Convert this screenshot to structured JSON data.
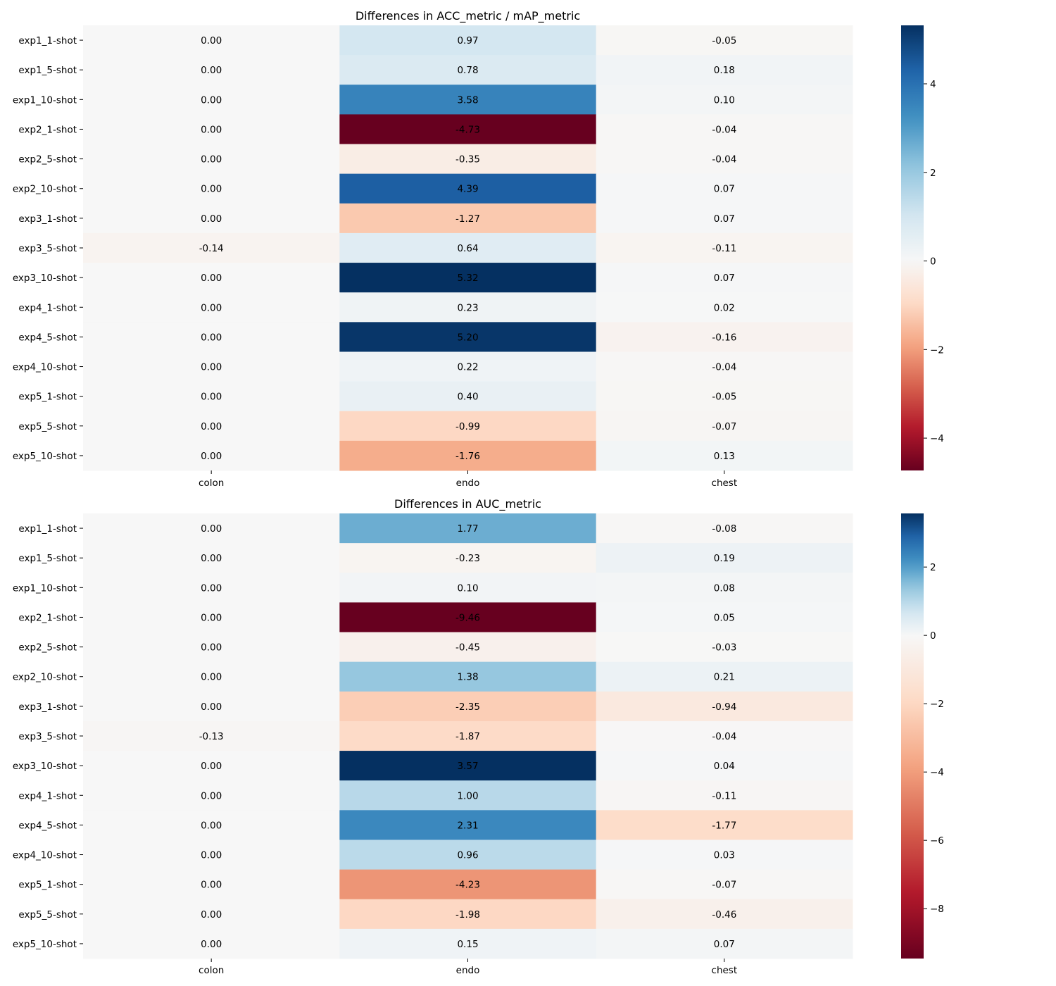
{
  "chart_data": [
    {
      "type": "heatmap",
      "title": "Differences in ACC_metric / mAP_metric",
      "colormap": "RdBu",
      "x_categories": [
        "colon",
        "endo",
        "chest"
      ],
      "y_categories": [
        "exp1_1-shot",
        "exp1_5-shot",
        "exp1_10-shot",
        "exp2_1-shot",
        "exp2_5-shot",
        "exp2_10-shot",
        "exp3_1-shot",
        "exp3_5-shot",
        "exp3_10-shot",
        "exp4_1-shot",
        "exp4_5-shot",
        "exp4_10-shot",
        "exp5_1-shot",
        "exp5_5-shot",
        "exp5_10-shot"
      ],
      "values": [
        [
          0.0,
          0.97,
          -0.05
        ],
        [
          0.0,
          0.78,
          0.18
        ],
        [
          0.0,
          3.58,
          0.1
        ],
        [
          0.0,
          -4.73,
          -0.04
        ],
        [
          0.0,
          -0.35,
          -0.04
        ],
        [
          0.0,
          4.39,
          0.07
        ],
        [
          0.0,
          -1.27,
          0.07
        ],
        [
          -0.14,
          0.64,
          -0.11
        ],
        [
          0.0,
          5.32,
          0.07
        ],
        [
          0.0,
          0.23,
          0.02
        ],
        [
          0.0,
          5.2,
          -0.16
        ],
        [
          0.0,
          0.22,
          -0.04
        ],
        [
          0.0,
          0.4,
          -0.05
        ],
        [
          0.0,
          -0.99,
          -0.07
        ],
        [
          0.0,
          -1.76,
          0.13
        ]
      ],
      "vmin": -4.73,
      "vmax": 5.32,
      "colorbar_ticks": [
        -4,
        -2,
        0,
        2,
        4
      ]
    },
    {
      "type": "heatmap",
      "title": "Differences in AUC_metric",
      "colormap": "RdBu",
      "x_categories": [
        "colon",
        "endo",
        "chest"
      ],
      "y_categories": [
        "exp1_1-shot",
        "exp1_5-shot",
        "exp1_10-shot",
        "exp2_1-shot",
        "exp2_5-shot",
        "exp2_10-shot",
        "exp3_1-shot",
        "exp3_5-shot",
        "exp3_10-shot",
        "exp4_1-shot",
        "exp4_5-shot",
        "exp4_10-shot",
        "exp5_1-shot",
        "exp5_5-shot",
        "exp5_10-shot"
      ],
      "values": [
        [
          0.0,
          1.77,
          -0.08
        ],
        [
          0.0,
          -0.23,
          0.19
        ],
        [
          0.0,
          0.1,
          0.08
        ],
        [
          0.0,
          -9.46,
          0.05
        ],
        [
          0.0,
          -0.45,
          -0.03
        ],
        [
          0.0,
          1.38,
          0.21
        ],
        [
          0.0,
          -2.35,
          -0.94
        ],
        [
          -0.13,
          -1.87,
          -0.04
        ],
        [
          0.0,
          3.57,
          0.04
        ],
        [
          0.0,
          1.0,
          -0.11
        ],
        [
          0.0,
          2.31,
          -1.77
        ],
        [
          0.0,
          0.96,
          0.03
        ],
        [
          0.0,
          -4.23,
          -0.07
        ],
        [
          0.0,
          -1.98,
          -0.46
        ],
        [
          0.0,
          0.15,
          0.07
        ]
      ],
      "vmin": -9.46,
      "vmax": 3.57,
      "colorbar_ticks": [
        -8,
        -6,
        -4,
        -2,
        0,
        2
      ]
    }
  ]
}
